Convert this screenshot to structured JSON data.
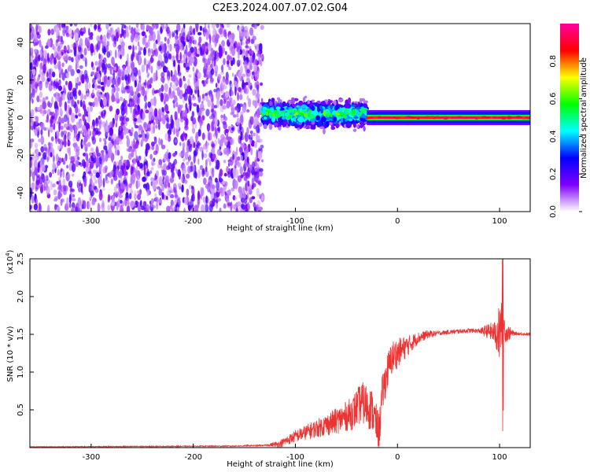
{
  "title": "C2E3.2024.007.07.02.G04",
  "chart_data": [
    {
      "type": "heatmap",
      "name": "spectrogram",
      "xlabel": "Height of straight line (km)",
      "ylabel": "Frequency (Hz)",
      "xlim": [
        -360,
        130
      ],
      "ylim": [
        -50,
        50
      ],
      "x_ticks": [
        -300,
        -200,
        -100,
        0,
        100
      ],
      "x_tick_labels": [
        "-300",
        "-200",
        "-100",
        "0",
        "100"
      ],
      "y_ticks": [
        -40,
        -20,
        0,
        20,
        40
      ],
      "y_tick_labels": [
        "-40",
        "-20",
        "0",
        "20",
        "40"
      ],
      "colorbar": {
        "label": "Normalized spectral amplitude",
        "range": [
          0,
          1
        ],
        "ticks": [
          0.0,
          0.2,
          0.4,
          0.6,
          0.8
        ],
        "tick_labels": [
          "0.0",
          "0.2",
          "0.4",
          "0.6",
          "0.8"
        ],
        "colors": [
          "#ffffff",
          "#8000ff",
          "#0000ff",
          "#00ffff",
          "#00ff00",
          "#ffff00",
          "#ff0000",
          "#ff00a0"
        ]
      },
      "regions": [
        {
          "x_range": [
            -360,
            -132
          ],
          "freq_range": [
            -50,
            50
          ],
          "amplitude": "low noise (~0.1-0.25)"
        },
        {
          "x_range": [
            -132,
            -30
          ],
          "freq_center": 2,
          "freq_halfwidth": 6,
          "amplitude": "0.3-0.6"
        },
        {
          "x_range": [
            -30,
            130
          ],
          "freq_center": 0,
          "freq_halfwidth": 3,
          "amplitude": "0.8-1.0"
        }
      ]
    },
    {
      "type": "line",
      "name": "snr",
      "xlabel": "Height of straight line (km)",
      "ylabel": "SNR (10 * v/v)",
      "y_multiplier_label": "(x10",
      "y_multiplier_exp": "4",
      "y_multiplier_close": ")",
      "xlim": [
        -360,
        130
      ],
      "ylim": [
        0,
        25000
      ],
      "x_ticks": [
        -300,
        -200,
        -100,
        0,
        100
      ],
      "x_tick_labels": [
        "-300",
        "-200",
        "-100",
        "0",
        "100"
      ],
      "y_ticks": [
        5000,
        10000,
        15000,
        20000,
        25000
      ],
      "y_tick_labels": [
        "0.5",
        "1.0",
        "1.5",
        "2.0",
        "2.5"
      ],
      "color": "#ee3333",
      "profile": [
        [
          -360,
          100
        ],
        [
          -250,
          150
        ],
        [
          -160,
          200
        ],
        [
          -130,
          300
        ],
        [
          -115,
          500
        ],
        [
          -100,
          1500
        ],
        [
          -80,
          2500
        ],
        [
          -60,
          3500
        ],
        [
          -45,
          4500
        ],
        [
          -35,
          6000
        ],
        [
          -25,
          5000
        ],
        [
          -18,
          2000
        ],
        [
          -15,
          7000
        ],
        [
          -10,
          10000
        ],
        [
          -5,
          12000
        ],
        [
          0,
          12500
        ],
        [
          10,
          13500
        ],
        [
          20,
          14500
        ],
        [
          30,
          15000
        ],
        [
          50,
          15300
        ],
        [
          70,
          15500
        ],
        [
          90,
          15400
        ],
        [
          100,
          15000
        ],
        [
          103,
          17000
        ],
        [
          106,
          15200
        ],
        [
          115,
          15100
        ],
        [
          130,
          15000
        ]
      ],
      "noise": [
        [
          -360,
          50
        ],
        [
          -130,
          80
        ],
        [
          -110,
          600
        ],
        [
          -80,
          1200
        ],
        [
          -50,
          2000
        ],
        [
          -30,
          3000
        ],
        [
          -18,
          2500
        ],
        [
          -10,
          2500
        ],
        [
          0,
          2000
        ],
        [
          20,
          800
        ],
        [
          40,
          300
        ],
        [
          80,
          300
        ],
        [
          95,
          1500
        ],
        [
          100,
          4000
        ],
        [
          105,
          1500
        ],
        [
          115,
          200
        ],
        [
          130,
          200
        ]
      ]
    }
  ]
}
